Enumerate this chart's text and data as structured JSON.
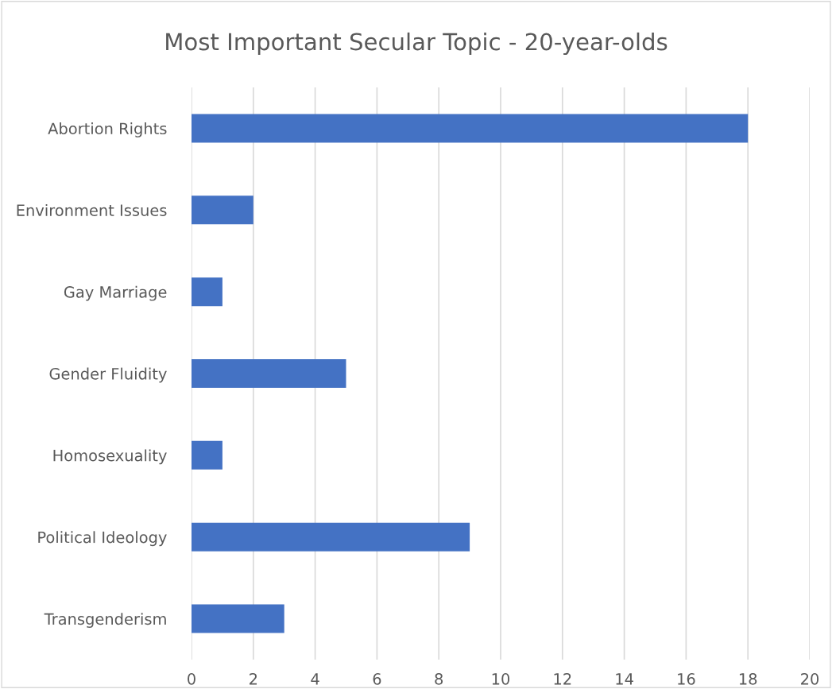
{
  "chart_data": {
    "type": "bar",
    "orientation": "horizontal",
    "title": "Most Important Secular Topic - 20-year-olds",
    "categories": [
      "Abortion Rights",
      "Environment Issues",
      "Gay Marriage",
      "Gender Fluidity",
      "Homosexuality",
      "Political Ideology",
      "Transgenderism"
    ],
    "values": [
      18,
      2,
      1,
      5,
      1,
      9,
      3
    ],
    "color": "#4472c4",
    "xlim": [
      0,
      20
    ],
    "xticks": [
      0,
      2,
      4,
      6,
      8,
      10,
      12,
      14,
      16,
      18,
      20
    ],
    "grid": "x",
    "legend": false
  }
}
